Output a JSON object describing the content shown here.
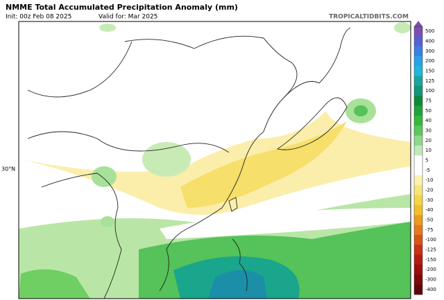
{
  "header": {
    "title": "NMME Total Accumulated Precipitation Anomaly (mm)",
    "init": "Init: 00z Feb 08 2025",
    "valid": "Valid for: Mar 2025",
    "source": "TROPICALTIDBITS.COM"
  },
  "map": {
    "lat_label": "30°N"
  },
  "colorbar": {
    "labels": [
      500,
      400,
      300,
      200,
      150,
      125,
      100,
      75,
      50,
      40,
      30,
      20,
      10,
      5,
      -5,
      -10,
      -20,
      -30,
      -40,
      -50,
      -75,
      -100,
      -125,
      -150,
      -200,
      -300,
      -400
    ]
  }
}
